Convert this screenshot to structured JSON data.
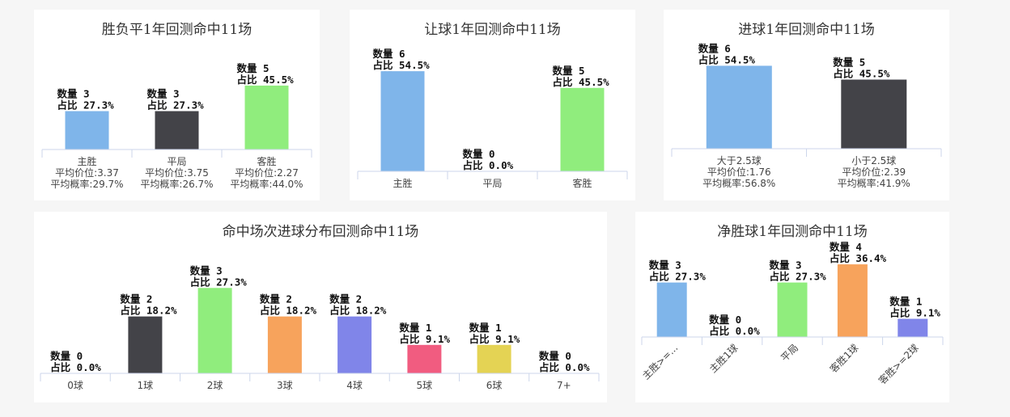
{
  "colors": {
    "blue": "#7fb5ea",
    "dark": "#434348",
    "green": "#90ed7d",
    "orange": "#f7a35c",
    "purple": "#8085e9",
    "pink": "#f15c80",
    "yellow": "#e4d354",
    "axis": "#ccd6eb"
  },
  "label_prefix": {
    "count": "数量",
    "ratio": "占比"
  },
  "chart_data": [
    {
      "id": "c1",
      "type": "bar",
      "title": "胜负平1年回测命中11场",
      "ylim": [
        0,
        5.5
      ],
      "categories": [
        {
          "lines": [
            "主胜",
            "平均价位:3.37",
            "平均概率:29.7%"
          ],
          "value": 3,
          "pct": "27.3%",
          "color": "blue"
        },
        {
          "lines": [
            "平局",
            "平均价位:3.75",
            "平均概率:26.7%"
          ],
          "value": 3,
          "pct": "27.3%",
          "color": "dark"
        },
        {
          "lines": [
            "客胜",
            "平均价位:2.27",
            "平均概率:44.0%"
          ],
          "value": 5,
          "pct": "45.5%",
          "color": "green"
        }
      ]
    },
    {
      "id": "c2",
      "type": "bar",
      "title": "让球1年回测命中11场",
      "ylim": [
        0,
        6.2
      ],
      "categories": [
        {
          "lines": [
            "主胜"
          ],
          "value": 6,
          "pct": "54.5%",
          "color": "blue"
        },
        {
          "lines": [
            "平局"
          ],
          "value": 0,
          "pct": "0.0%",
          "color": "dark"
        },
        {
          "lines": [
            "客胜"
          ],
          "value": 5,
          "pct": "45.5%",
          "color": "green"
        }
      ]
    },
    {
      "id": "c3",
      "type": "bar",
      "title": "进球1年回测命中11场",
      "ylim": [
        0,
        6.2
      ],
      "categories": [
        {
          "lines": [
            "大于2.5球",
            "平均价位:1.76",
            "平均概率:56.8%"
          ],
          "value": 6,
          "pct": "54.5%",
          "color": "blue"
        },
        {
          "lines": [
            "小于2.5球",
            "平均价位:2.39",
            "平均概率:41.9%"
          ],
          "value": 5,
          "pct": "45.5%",
          "color": "dark"
        }
      ]
    },
    {
      "id": "c4",
      "type": "bar",
      "title": "命中场次进球分布回测命中11场",
      "ylim": [
        0,
        3.35
      ],
      "categories": [
        {
          "lines": [
            "0球"
          ],
          "value": 0,
          "pct": "0.0%",
          "color": "blue"
        },
        {
          "lines": [
            "1球"
          ],
          "value": 2,
          "pct": "18.2%",
          "color": "dark"
        },
        {
          "lines": [
            "2球"
          ],
          "value": 3,
          "pct": "27.3%",
          "color": "green"
        },
        {
          "lines": [
            "3球"
          ],
          "value": 2,
          "pct": "18.2%",
          "color": "orange"
        },
        {
          "lines": [
            "4球"
          ],
          "value": 2,
          "pct": "18.2%",
          "color": "purple"
        },
        {
          "lines": [
            "5球"
          ],
          "value": 1,
          "pct": "9.1%",
          "color": "pink"
        },
        {
          "lines": [
            "6球"
          ],
          "value": 1,
          "pct": "9.1%",
          "color": "yellow"
        },
        {
          "lines": [
            "7+"
          ],
          "value": 0,
          "pct": "0.0%",
          "color": "blue"
        }
      ]
    },
    {
      "id": "c5",
      "type": "bar",
      "title": "净胜球1年回测命中11场",
      "ylim": [
        0,
        4.05
      ],
      "rotate_ticks": true,
      "categories": [
        {
          "lines": [
            "主胜>=..."
          ],
          "value": 3,
          "pct": "27.3%",
          "color": "blue"
        },
        {
          "lines": [
            "主胜1球"
          ],
          "value": 0,
          "pct": "0.0%",
          "color": "dark"
        },
        {
          "lines": [
            "平局"
          ],
          "value": 3,
          "pct": "27.3%",
          "color": "green"
        },
        {
          "lines": [
            "客胜1球"
          ],
          "value": 4,
          "pct": "36.4%",
          "color": "orange"
        },
        {
          "lines": [
            "客胜>=2球"
          ],
          "value": 1,
          "pct": "9.1%",
          "color": "purple"
        }
      ]
    }
  ]
}
